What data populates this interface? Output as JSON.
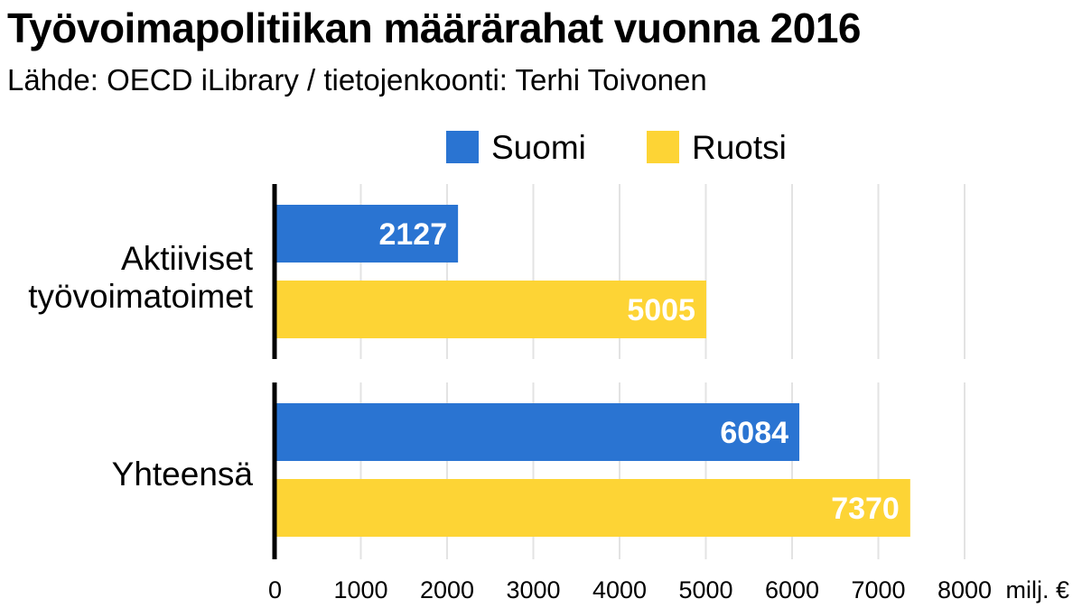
{
  "header": {
    "title": "Työvoimapolitiikan määrärahat vuonna 2016",
    "subtitle": "Lähde: OECD iLibrary / tietojenkoonti: Terhi Toivonen"
  },
  "colors": {
    "suomi": "#2a74d2",
    "ruotsi": "#fdd435",
    "grid": "#e3e3e3",
    "axis": "#000000"
  },
  "chart_data": {
    "type": "bar",
    "orientation": "horizontal",
    "title": "Työvoimapolitiikan määrärahat vuonna 2016",
    "subtitle": "Lähde: OECD iLibrary / tietojenkoonti: Terhi Toivonen",
    "categories": [
      {
        "lines": [
          "Aktiiviset",
          "työvoimatoimet"
        ]
      },
      {
        "lines": [
          "Yhteensä"
        ]
      }
    ],
    "series": [
      {
        "name": "Suomi",
        "color": "#2a74d2",
        "values": [
          2127,
          6084
        ]
      },
      {
        "name": "Ruotsi",
        "color": "#fdd435",
        "values": [
          5005,
          7370
        ]
      }
    ],
    "xlim": [
      0,
      8000
    ],
    "xticks": [
      0,
      1000,
      2000,
      3000,
      4000,
      5000,
      6000,
      7000,
      8000
    ],
    "xunit": "milj. €",
    "grid": true,
    "legend_position": "top"
  }
}
